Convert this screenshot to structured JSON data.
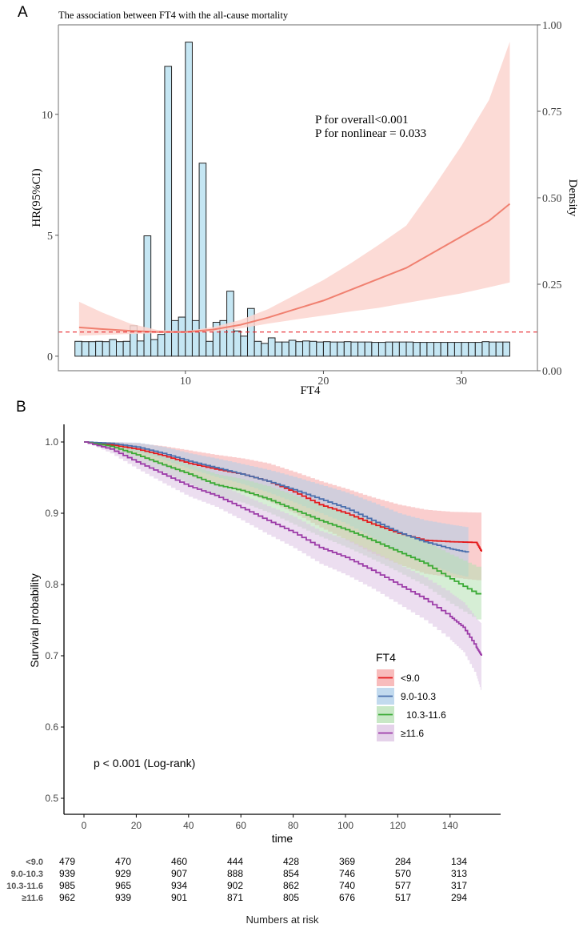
{
  "panels": {
    "a_label": "A",
    "b_label": "B"
  },
  "chart_data": [
    {
      "type": "line",
      "panel": "A",
      "title": "The association between FT4 with the all-cause mortality",
      "xlabel": "FT4",
      "ylabel": "HR(95%CI)",
      "y2label": "Density",
      "xlim": [
        0.8,
        35.5
      ],
      "ylim": [
        -0.6,
        13.7
      ],
      "y2lim": [
        0,
        1
      ],
      "x_ticks": [
        10,
        20,
        30
      ],
      "y_ticks": [
        0,
        5,
        10
      ],
      "y2_ticks": [
        "0.00",
        "0.25",
        "0.50",
        "0.75",
        "1.00"
      ],
      "reference_line_hr": 1,
      "annotations": [
        "P for overall<0.001",
        "P for nonlinear = 0.033"
      ],
      "colors": {
        "curve": "#f08070",
        "ci": "#fbd5cf",
        "ref": "#e8262a",
        "bar_fill": "#c5e6f3",
        "bar_stroke": "#222222"
      },
      "spline": {
        "x": [
          2.3,
          4,
          6,
          8,
          10,
          12,
          14,
          16,
          18,
          20,
          22,
          24,
          26,
          28,
          30,
          32,
          33.5
        ],
        "hr": [
          1.19,
          1.12,
          1.05,
          1.0,
          1.0,
          1.1,
          1.3,
          1.6,
          1.95,
          2.3,
          2.75,
          3.2,
          3.65,
          4.3,
          4.95,
          5.6,
          6.3
        ],
        "lower": [
          0.85,
          0.88,
          0.92,
          0.95,
          0.96,
          1.02,
          1.15,
          1.35,
          1.52,
          1.68,
          1.85,
          2.0,
          2.2,
          2.4,
          2.6,
          2.85,
          3.05
        ],
        "upper": [
          2.25,
          1.8,
          1.35,
          1.08,
          1.04,
          1.2,
          1.5,
          1.95,
          2.55,
          3.15,
          3.85,
          4.6,
          5.4,
          7.0,
          8.7,
          10.6,
          13.0
        ]
      },
      "histogram": {
        "bin_start": 2.0,
        "bin_width": 0.5,
        "density": [
          0.085,
          0.084,
          0.084,
          0.085,
          0.084,
          0.09,
          0.084,
          0.085,
          0.13,
          0.086,
          0.39,
          0.09,
          0.105,
          0.88,
          0.145,
          0.155,
          0.95,
          0.145,
          0.6,
          0.085,
          0.14,
          0.145,
          0.23,
          0.115,
          0.1,
          0.18,
          0.085,
          0.079,
          0.095,
          0.083,
          0.083,
          0.088,
          0.084,
          0.086,
          0.085,
          0.083,
          0.084,
          0.083,
          0.083,
          0.084,
          0.083,
          0.083,
          0.083,
          0.082,
          0.082,
          0.083,
          0.083,
          0.083,
          0.083,
          0.082,
          0.082,
          0.082,
          0.082,
          0.082,
          0.082,
          0.082,
          0.082,
          0.082,
          0.082,
          0.084,
          0.083,
          0.083,
          0.083
        ]
      }
    },
    {
      "type": "line",
      "panel": "B",
      "xlabel": "time",
      "ylabel": "Survival probability",
      "xlim": [
        -7,
        160
      ],
      "ylim": [
        0.475,
        1.025
      ],
      "x_ticks": [
        0,
        20,
        40,
        60,
        80,
        100,
        120,
        140
      ],
      "y_ticks": [
        "0.5",
        "0.6",
        "0.7",
        "0.8",
        "0.9",
        "1.0"
      ],
      "annotation": "p < 0.001 (Log-rank)",
      "legend": {
        "title": "FT4",
        "position": "right-center"
      },
      "series": [
        {
          "name": "<9.0",
          "color": "#e41a1c",
          "band": "#f6a6a6",
          "t": [
            0,
            10,
            20,
            30,
            40,
            50,
            60,
            70,
            80,
            90,
            100,
            110,
            120,
            130,
            140,
            150,
            152
          ],
          "s": [
            1.0,
            0.996,
            0.99,
            0.981,
            0.97,
            0.962,
            0.955,
            0.945,
            0.93,
            0.912,
            0.9,
            0.885,
            0.872,
            0.862,
            0.86,
            0.859,
            0.846
          ],
          "lo": [
            1.0,
            0.99,
            0.98,
            0.966,
            0.952,
            0.94,
            0.93,
            0.917,
            0.9,
            0.88,
            0.862,
            0.843,
            0.828,
            0.815,
            0.81,
            0.806,
            0.806
          ],
          "hi": [
            1.0,
            1.0,
            0.998,
            0.994,
            0.988,
            0.982,
            0.977,
            0.97,
            0.958,
            0.945,
            0.934,
            0.922,
            0.912,
            0.905,
            0.902,
            0.901,
            0.901
          ]
        },
        {
          "name": "9.0-10.3",
          "color": "#4a6fad",
          "band": "#aecde8",
          "t": [
            0,
            10,
            20,
            30,
            40,
            50,
            60,
            70,
            80,
            90,
            100,
            110,
            120,
            130,
            140,
            147
          ],
          "s": [
            1.0,
            0.998,
            0.993,
            0.984,
            0.973,
            0.964,
            0.955,
            0.945,
            0.933,
            0.92,
            0.907,
            0.89,
            0.873,
            0.86,
            0.85,
            0.845
          ],
          "lo": [
            1.0,
            0.994,
            0.986,
            0.975,
            0.962,
            0.951,
            0.941,
            0.929,
            0.915,
            0.9,
            0.885,
            0.865,
            0.846,
            0.83,
            0.816,
            0.81
          ],
          "hi": [
            1.0,
            1.0,
            0.999,
            0.993,
            0.984,
            0.977,
            0.969,
            0.961,
            0.951,
            0.94,
            0.929,
            0.915,
            0.9,
            0.89,
            0.884,
            0.88
          ]
        },
        {
          "name": "10.3-11.6",
          "color": "#3aaa35",
          "band": "#b5e0b3",
          "t": [
            0,
            10,
            20,
            30,
            40,
            50,
            60,
            70,
            80,
            90,
            100,
            110,
            120,
            130,
            140,
            150,
            152
          ],
          "s": [
            1.0,
            0.994,
            0.982,
            0.968,
            0.955,
            0.94,
            0.932,
            0.92,
            0.905,
            0.89,
            0.877,
            0.862,
            0.846,
            0.83,
            0.808,
            0.787,
            0.787
          ],
          "lo": [
            1.0,
            0.989,
            0.973,
            0.957,
            0.941,
            0.924,
            0.915,
            0.901,
            0.884,
            0.867,
            0.852,
            0.835,
            0.817,
            0.798,
            0.773,
            0.751,
            0.751
          ],
          "hi": [
            1.0,
            0.999,
            0.991,
            0.979,
            0.968,
            0.955,
            0.948,
            0.938,
            0.925,
            0.912,
            0.901,
            0.888,
            0.874,
            0.86,
            0.842,
            0.825,
            0.825
          ]
        },
        {
          "name": "≥11.6",
          "color": "#9c3ca8",
          "band": "#dcc3e3",
          "t": [
            0,
            10,
            20,
            30,
            40,
            50,
            60,
            70,
            80,
            90,
            100,
            110,
            120,
            130,
            140,
            145,
            150,
            152
          ],
          "s": [
            1.0,
            0.99,
            0.972,
            0.955,
            0.938,
            0.925,
            0.908,
            0.89,
            0.873,
            0.852,
            0.838,
            0.82,
            0.8,
            0.78,
            0.755,
            0.74,
            0.712,
            0.7
          ],
          "lo": [
            1.0,
            0.984,
            0.962,
            0.942,
            0.923,
            0.909,
            0.89,
            0.87,
            0.851,
            0.829,
            0.813,
            0.794,
            0.772,
            0.75,
            0.722,
            0.705,
            0.672,
            0.648
          ],
          "hi": [
            1.0,
            0.996,
            0.982,
            0.968,
            0.953,
            0.941,
            0.926,
            0.91,
            0.895,
            0.875,
            0.863,
            0.846,
            0.828,
            0.81,
            0.788,
            0.775,
            0.752,
            0.745
          ]
        }
      ],
      "risk_table": {
        "title": "Numbers at risk",
        "times": [
          0,
          20,
          40,
          60,
          80,
          100,
          120,
          140
        ],
        "rows": [
          {
            "label": "<9.0",
            "values": [
              479,
              470,
              460,
              444,
              428,
              369,
              284,
              134
            ]
          },
          {
            "label": "9.0-10.3",
            "values": [
              939,
              929,
              907,
              888,
              854,
              746,
              570,
              313
            ]
          },
          {
            "label": "10.3-11.6",
            "values": [
              985,
              965,
              934,
              902,
              862,
              740,
              577,
              317
            ]
          },
          {
            "label": "≥11.6",
            "values": [
              962,
              939,
              901,
              871,
              805,
              676,
              517,
              294
            ]
          }
        ]
      }
    }
  ]
}
